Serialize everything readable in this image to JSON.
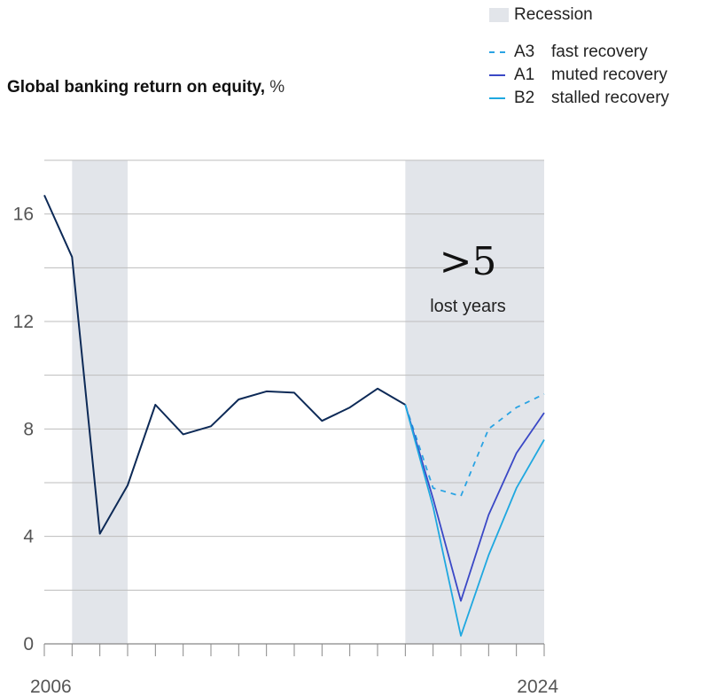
{
  "title": {
    "main": "Global banking return on equity,",
    "unit": " %"
  },
  "legend": {
    "recession_label": "Recession",
    "items": [
      {
        "code": "A3",
        "label": "fast recovery",
        "color": "#2aa3e3",
        "style": "dashed"
      },
      {
        "code": "A1",
        "label": "muted recovery",
        "color": "#3a48c6",
        "style": "solid"
      },
      {
        "code": "B2",
        "label": "stalled recovery",
        "color": "#1fa8e0",
        "style": "solid"
      }
    ]
  },
  "annotation": {
    "big": ">5",
    "small": "lost years"
  },
  "chart_data": {
    "type": "line",
    "title": "Global banking return on equity, %",
    "xlabel": "",
    "ylabel": "",
    "x_tick_labels": [
      "2006",
      "2024"
    ],
    "y_ticks": [
      0,
      4,
      8,
      12,
      16
    ],
    "xlim": [
      2006,
      2024
    ],
    "ylim": [
      0,
      18
    ],
    "grid": true,
    "recession_shading": [
      [
        2007,
        2009
      ],
      [
        2019,
        2024
      ]
    ],
    "series": [
      {
        "name": "",
        "color": "#0d2a57",
        "style": "solid",
        "x": [
          2006,
          2007,
          2008,
          2009,
          2010,
          2011,
          2012,
          2013,
          2014,
          2015,
          2016,
          2017,
          2018,
          2019
        ],
        "y": [
          16.7,
          14.4,
          4.1,
          5.9,
          8.9,
          7.8,
          8.1,
          9.1,
          9.4,
          9.35,
          8.3,
          8.8,
          9.5,
          8.9
        ]
      },
      {
        "name": "A3 fast recovery",
        "color": "#2aa3e3",
        "style": "dashed",
        "x": [
          2019,
          2020,
          2021,
          2022,
          2023,
          2024
        ],
        "y": [
          8.9,
          5.8,
          5.5,
          8.0,
          8.8,
          9.3
        ]
      },
      {
        "name": "A1 muted recovery",
        "color": "#3a48c6",
        "style": "solid",
        "x": [
          2019,
          2020,
          2021,
          2022,
          2023,
          2024
        ],
        "y": [
          8.9,
          5.4,
          1.6,
          4.8,
          7.1,
          8.6
        ]
      },
      {
        "name": "B2 stalled recovery",
        "color": "#1fa8e0",
        "style": "solid",
        "x": [
          2019,
          2020,
          2021,
          2022,
          2023,
          2024
        ],
        "y": [
          8.9,
          5.1,
          0.3,
          3.3,
          5.8,
          7.6
        ]
      }
    ]
  }
}
